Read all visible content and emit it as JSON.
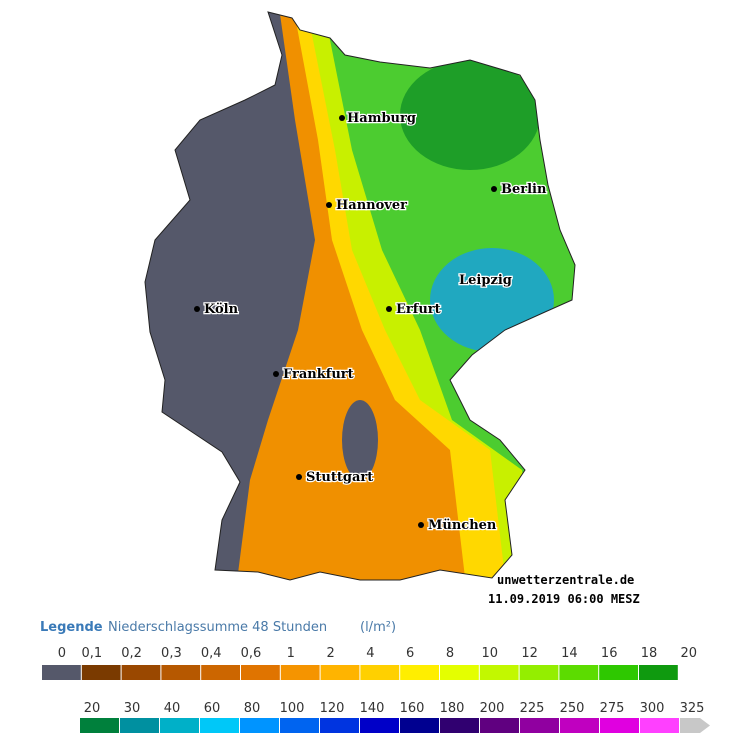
{
  "cities": [
    "Hamburg",
    "Berlin",
    "Hannover",
    "Leipzig",
    "Köln",
    "Erfurt",
    "Frankfurt",
    "Stuttgart",
    "München"
  ],
  "source": "unwetterzentrale.de",
  "timestamp": "11.09.2019 06:00 MESZ",
  "legend": {
    "title": "Legende",
    "subtitle": "Niederschlagssumme 48 Stunden",
    "unit": "(l/m²)",
    "rows": [
      {
        "labels": [
          "0",
          "0,1",
          "0,2",
          "0,3",
          "0,4",
          "0,6",
          "1",
          "2",
          "4",
          "6",
          "8",
          "10",
          "12",
          "14",
          "16",
          "18",
          "20"
        ],
        "colors": [
          "#55586a",
          "#7a3a00",
          "#9a4800",
          "#b65800",
          "#cc6600",
          "#e07400",
          "#f59400",
          "#ffb400",
          "#ffd000",
          "#ffee00",
          "#e4ff00",
          "#c2f800",
          "#94ee00",
          "#5cdc00",
          "#2ec800",
          "#0f9a0f"
        ]
      },
      {
        "labels": [
          "20",
          "30",
          "40",
          "60",
          "80",
          "100",
          "120",
          "140",
          "160",
          "180",
          "200",
          "225",
          "250",
          "275",
          "300",
          "325"
        ],
        "colors": [
          "#00803c",
          "#0090a0",
          "#00b0c8",
          "#00c8f8",
          "#0094ff",
          "#0064f0",
          "#0034e0",
          "#0000c8",
          "#000090",
          "#300070",
          "#600080",
          "#9000a0",
          "#c000c0",
          "#e000e0",
          "#ff40ff"
        ]
      }
    ]
  }
}
